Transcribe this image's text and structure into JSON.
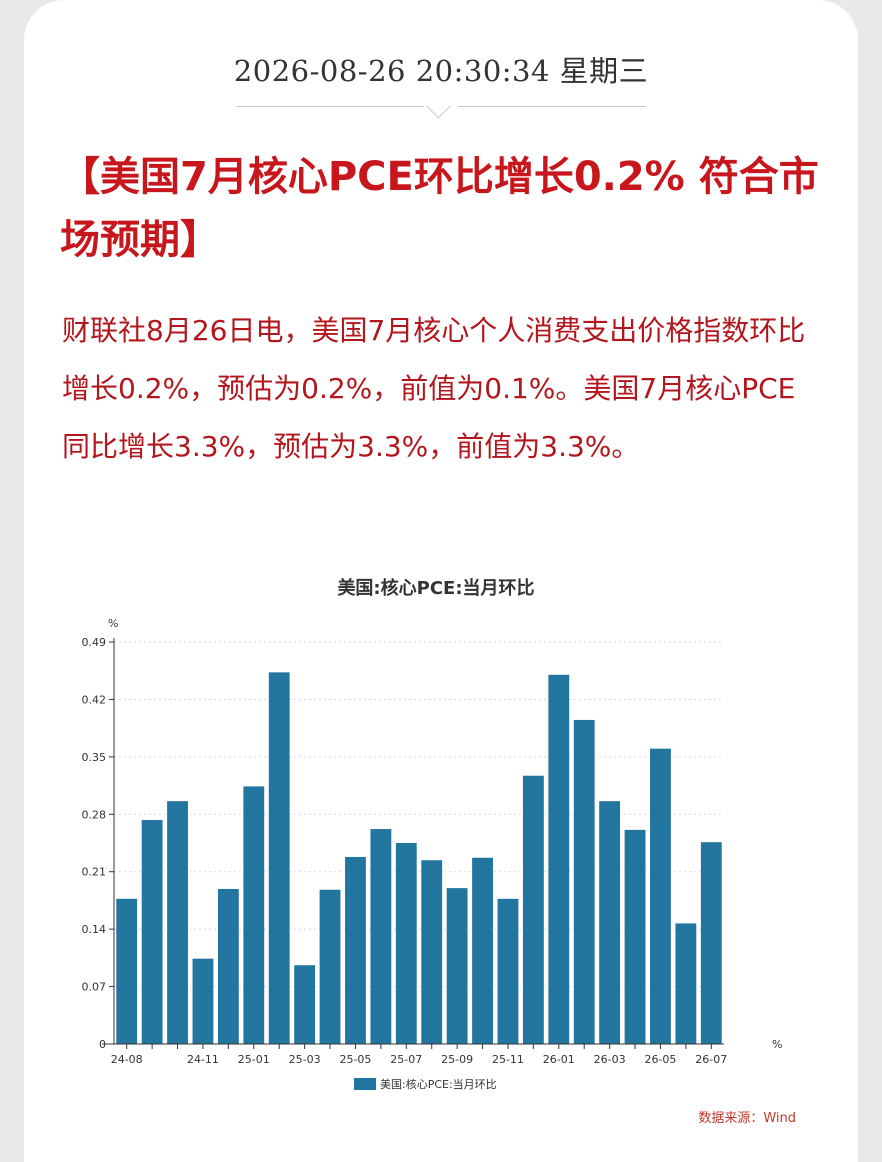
{
  "article": {
    "timestamp": "2026-08-26 20:30:34 星期三",
    "headline": "【美国7月核心PCE环比增长0.2% 符合市场预期】",
    "body": "财联社8月26日电，美国7月核心个人消费支出价格指数环比增长0.2%，预估为0.2%，前值为0.1%。美国7月核心PCE同比增长3.3%，预估为3.3%，前值为3.3%。"
  },
  "colors": {
    "accent": "#c8161d",
    "bar": "#22759f"
  },
  "chart_data": {
    "type": "bar",
    "title": "美国:核心PCE:当月环比",
    "y_unit": "%",
    "x_unit": "%",
    "ylim": [
      0,
      0.49
    ],
    "yticks": [
      0,
      0.07,
      0.14,
      0.21,
      0.28,
      0.35,
      0.42,
      0.49
    ],
    "categories": [
      "24-08",
      "24-09",
      "24-10",
      "24-11",
      "24-12",
      "25-01",
      "25-02",
      "25-03",
      "25-04",
      "25-05",
      "25-06",
      "25-07",
      "25-08",
      "25-09",
      "25-10",
      "25-11",
      "25-12",
      "26-01",
      "26-02",
      "26-03",
      "26-04",
      "26-05",
      "26-06",
      "26-07"
    ],
    "x_tick_labels": [
      "24-08",
      "24-11",
      "25-01",
      "25-03",
      "25-05",
      "25-07",
      "25-09",
      "25-11",
      "26-01",
      "26-03",
      "26-05",
      "26-07"
    ],
    "series": [
      {
        "name": "美国:核心PCE:当月环比",
        "values": [
          0.177,
          0.273,
          0.296,
          0.104,
          0.189,
          0.314,
          0.453,
          0.096,
          0.188,
          0.228,
          0.262,
          0.245,
          0.224,
          0.19,
          0.227,
          0.177,
          0.327,
          0.45,
          0.395,
          0.296,
          0.261,
          0.36,
          0.147,
          0.246
        ]
      }
    ],
    "legend": "bottom-center",
    "source": "数据来源：Wind",
    "grid": true
  }
}
